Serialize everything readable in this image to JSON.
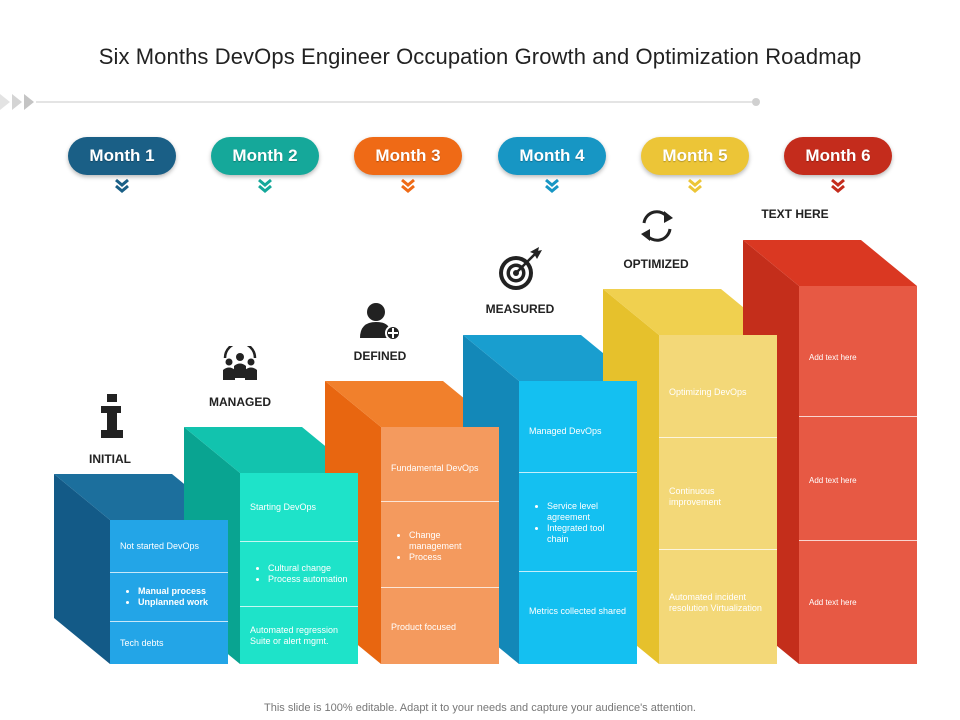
{
  "title": "Six Months DevOps Engineer Occupation Growth and Optimization Roadmap",
  "months": [
    {
      "label": "Month 1",
      "color": "#1a5f86"
    },
    {
      "label": "Month 2",
      "color": "#15a89a"
    },
    {
      "label": "Month 3",
      "color": "#ef6a16"
    },
    {
      "label": "Month 4",
      "color": "#1796c4"
    },
    {
      "label": "Month 5",
      "color": "#ecc537"
    },
    {
      "label": "Month 6",
      "color": "#c42c1c"
    }
  ],
  "stages": [
    {
      "label": "INITIAL",
      "icon": "info-icon"
    },
    {
      "label": "MANAGED",
      "icon": "team-icon"
    },
    {
      "label": "DEFINED",
      "icon": "user-add-icon"
    },
    {
      "label": "MEASURED",
      "icon": "target-icon"
    },
    {
      "label": "OPTIMIZED",
      "icon": "refresh-icon"
    },
    {
      "label": "TEXT HERE",
      "icon": ""
    }
  ],
  "blocks": [
    {
      "heading": "Not started DevOps",
      "bullets": [
        "Manual process",
        "Unplanned work"
      ],
      "footer": "Tech debts"
    },
    {
      "heading": "Starting DevOps",
      "bullets": [
        "Cultural change",
        "Process automation"
      ],
      "footer": "Automated regression Suite or alert mgmt."
    },
    {
      "heading": "Fundamental DevOps",
      "bullets": [
        "Change management",
        "Process"
      ],
      "footer": "Product focused"
    },
    {
      "heading": "Managed DevOps",
      "bullets": [
        "Service level agreement",
        "Integrated tool chain"
      ],
      "footer": "Metrics collected shared"
    },
    {
      "heading": "Optimizing DevOps",
      "middle": "Continuous improvement",
      "footer": "Automated incident resolution Virtualization"
    },
    {
      "heading": "Add text here",
      "middle": "Add text here",
      "footer": "Add text here"
    }
  ],
  "footer_note": "This slide is 100% editable. Adapt it to your needs and capture your audience's attention."
}
